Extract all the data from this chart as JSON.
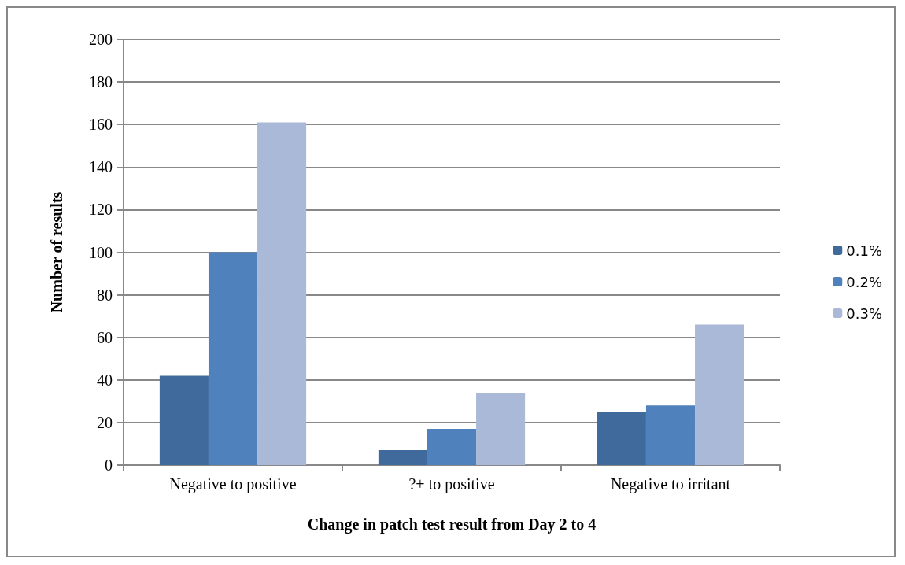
{
  "chart_data": {
    "type": "bar",
    "xlabel": "Change in patch test result from Day 2 to 4",
    "ylabel": "Number of results",
    "categories": [
      "Negative to positive",
      "?+ to positive",
      "Negative to irritant"
    ],
    "series": [
      {
        "name": "0.1%",
        "color": "#406a9c",
        "values": [
          42,
          7,
          25
        ]
      },
      {
        "name": "0.2%",
        "color": "#4f81bd",
        "values": [
          100,
          17,
          28
        ]
      },
      {
        "name": "0.3%",
        "color": "#aab9d8",
        "values": [
          161,
          34,
          66
        ]
      }
    ],
    "ylim": [
      0,
      200
    ],
    "yticks": [
      0,
      20,
      40,
      60,
      80,
      100,
      120,
      140,
      160,
      180,
      200
    ],
    "grid": "y",
    "legend": "right"
  }
}
